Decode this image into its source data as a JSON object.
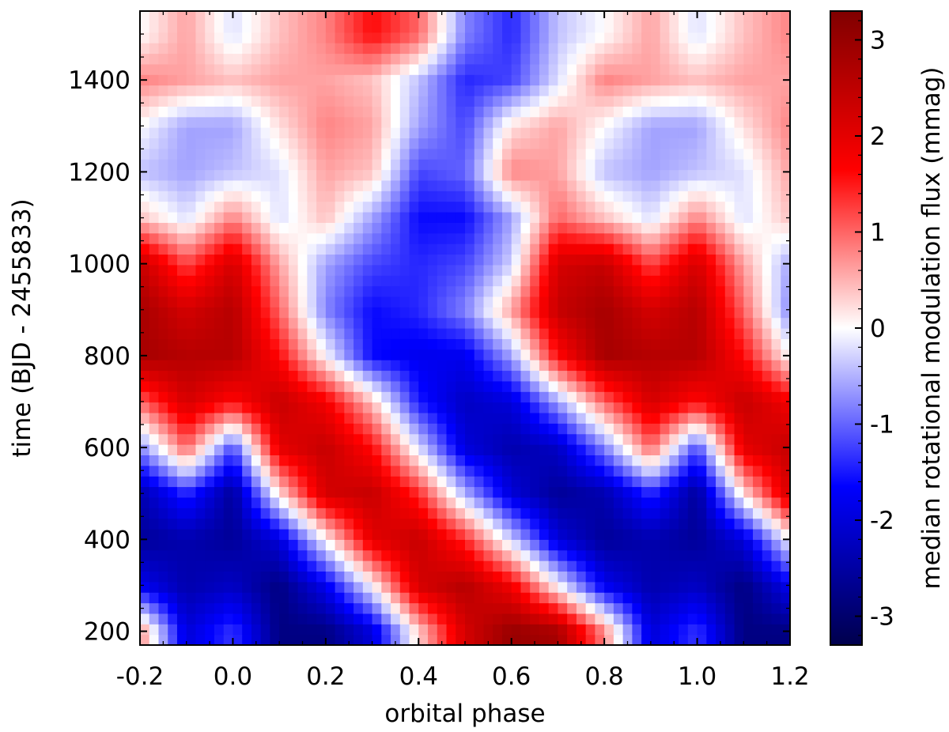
{
  "chart_data": {
    "type": "heatmap",
    "title": "",
    "xlabel": "orbital phase",
    "ylabel": "time (BJD - 2455833)",
    "xlim": [
      -0.2,
      1.2
    ],
    "ylim": [
      170,
      1550
    ],
    "x_ticks": [
      "-0.2",
      "0.0",
      "0.2",
      "0.4",
      "0.6",
      "0.8",
      "1.0",
      "1.2"
    ],
    "x_tick_values": [
      -0.2,
      0.0,
      0.2,
      0.4,
      0.6,
      0.8,
      1.0,
      1.2
    ],
    "y_ticks": [
      "200",
      "400",
      "600",
      "800",
      "1000",
      "1200",
      "1400"
    ],
    "y_tick_values": [
      200,
      400,
      600,
      800,
      1000,
      1200,
      1400
    ],
    "colorbar": {
      "label": "median rotational modulation flux (mmag)",
      "range": [
        -3.3,
        3.3
      ],
      "ticks": [
        "-3",
        "-2",
        "-1",
        "0",
        "1",
        "2",
        "3"
      ],
      "tick_values": [
        -3,
        -2,
        -1,
        0,
        1,
        2,
        3
      ],
      "colormap": "seismic",
      "colors": [
        "#00004c",
        "#0000ff",
        "#ffffff",
        "#ff0000",
        "#800000"
      ]
    },
    "grid": false,
    "times": [
      200,
      300,
      400,
      500,
      600,
      700,
      800,
      900,
      1000,
      1100,
      1200,
      1300,
      1400,
      1500
    ],
    "phases": [
      0.0,
      0.1,
      0.2,
      0.3,
      0.4,
      0.5,
      0.6,
      0.7,
      0.8,
      0.9
    ],
    "values": [
      [
        -1.3,
        -2.8,
        -2.8,
        -2.0,
        0.3,
        2.2,
        3.0,
        2.8,
        0.8,
        -2.0
      ],
      [
        -2.2,
        -2.8,
        -1.8,
        0.0,
        2.2,
        2.6,
        1.8,
        0.0,
        -1.8,
        -2.4
      ],
      [
        -2.6,
        -2.0,
        0.0,
        2.0,
        2.4,
        1.4,
        -0.3,
        -2.0,
        -2.6,
        -2.4
      ],
      [
        -2.6,
        0.2,
        2.2,
        2.4,
        1.4,
        -0.5,
        -2.0,
        -2.6,
        -2.4,
        -1.4
      ],
      [
        -1.2,
        2.0,
        2.4,
        1.6,
        -0.2,
        -2.0,
        -2.4,
        -2.2,
        -0.8,
        1.0
      ],
      [
        1.6,
        2.4,
        1.8,
        0.4,
        -1.5,
        -2.2,
        -2.0,
        -0.6,
        1.0,
        2.2
      ],
      [
        2.6,
        1.6,
        0.0,
        -1.6,
        -1.8,
        -1.8,
        -0.6,
        1.6,
        2.8,
        2.6
      ],
      [
        2.6,
        1.0,
        -0.8,
        -1.6,
        -1.4,
        -0.8,
        0.6,
        2.4,
        2.8,
        2.2
      ],
      [
        2.2,
        0.6,
        -0.6,
        -1.2,
        -1.4,
        -1.2,
        -0.3,
        2.2,
        2.4,
        1.2
      ],
      [
        0.8,
        -0.2,
        0.4,
        -0.6,
        -1.6,
        -1.6,
        -0.6,
        1.0,
        0.4,
        -0.2
      ],
      [
        -0.4,
        -0.2,
        0.6,
        0.4,
        -1.2,
        -1.0,
        0.8,
        0.6,
        -0.4,
        -0.6
      ],
      [
        -0.6,
        0.2,
        0.8,
        0.6,
        -0.6,
        -1.2,
        0.2,
        0.6,
        0.0,
        -0.6
      ],
      [
        0.4,
        0.6,
        0.6,
        0.4,
        -0.4,
        -1.4,
        -1.2,
        -0.2,
        0.8,
        0.6
      ],
      [
        -0.2,
        0.4,
        0.8,
        1.6,
        1.0,
        -0.8,
        -1.4,
        -0.4,
        0.0,
        0.6
      ]
    ]
  }
}
